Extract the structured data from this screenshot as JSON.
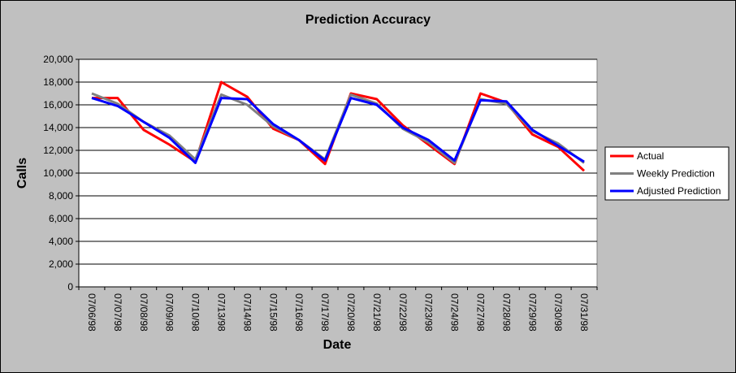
{
  "chart_data": {
    "type": "line",
    "title": "Prediction Accuracy",
    "xlabel": "Date",
    "ylabel": "Calls",
    "ylim": [
      0,
      20000
    ],
    "y_ticks": [
      0,
      2000,
      4000,
      6000,
      8000,
      10000,
      12000,
      14000,
      16000,
      18000,
      20000
    ],
    "y_tick_labels": [
      "0",
      "2,000",
      "4,000",
      "6,000",
      "8,000",
      "10,000",
      "12,000",
      "14,000",
      "16,000",
      "18,000",
      "20,000"
    ],
    "grid": true,
    "legend_position": "right",
    "categories": [
      "07/06/98",
      "07/07/98",
      "07/08/98",
      "07/09/98",
      "07/10/98",
      "07/13/98",
      "07/14/98",
      "07/15/98",
      "07/16/98",
      "07/17/98",
      "07/20/98",
      "07/21/98",
      "07/22/98",
      "07/23/98",
      "07/24/98",
      "07/27/98",
      "07/28/98",
      "07/29/98",
      "07/30/98",
      "07/31/98"
    ],
    "series": [
      {
        "name": "Actual",
        "color": "#ff0000",
        "values": [
          16600,
          16600,
          13800,
          12500,
          11000,
          18000,
          16700,
          13900,
          12900,
          10800,
          17000,
          16500,
          14200,
          12500,
          10800,
          17000,
          16200,
          13400,
          12300,
          10200
        ]
      },
      {
        "name": "Weekly Prediction",
        "color": "#808080",
        "values": [
          17000,
          16100,
          14500,
          13300,
          11200,
          16900,
          16000,
          14100,
          12900,
          11200,
          16900,
          16100,
          13900,
          12700,
          10900,
          16500,
          16100,
          13700,
          12600,
          10900
        ]
      },
      {
        "name": "Adjusted Prediction",
        "color": "#0000ff",
        "values": [
          16600,
          15900,
          14500,
          13100,
          10900,
          16600,
          16500,
          14300,
          12900,
          11100,
          16600,
          16000,
          14000,
          12900,
          11100,
          16400,
          16300,
          13800,
          12400,
          11000
        ]
      }
    ]
  }
}
